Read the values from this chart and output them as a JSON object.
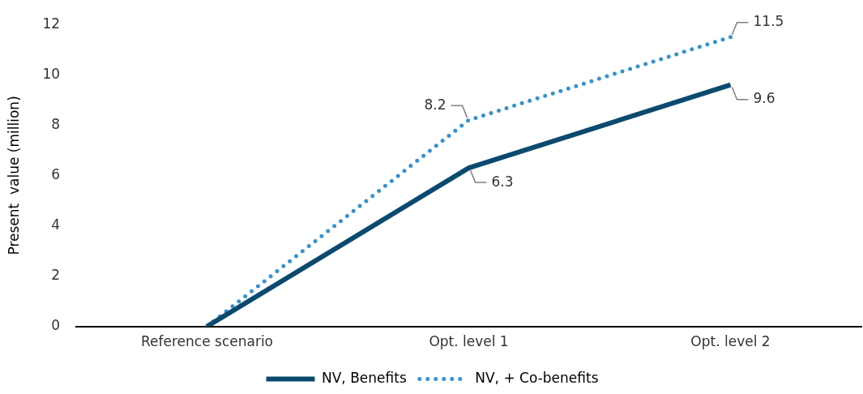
{
  "chart_data": {
    "type": "line",
    "ylabel": "Present  value (million)",
    "categories": [
      "Reference scenario",
      "Opt. level 1",
      "Opt. level 2"
    ],
    "series": [
      {
        "name": "NV, Benefits",
        "color": "#0b4a6f",
        "values": [
          0,
          6.3,
          9.6
        ],
        "value_labels": [
          null,
          "6.3",
          "9.6"
        ],
        "line_style": "solid"
      },
      {
        "name": "NV, + Co-benefits",
        "color": "#3592d0",
        "values": [
          0,
          8.2,
          11.5
        ],
        "value_labels": [
          null,
          "8.2",
          "11.5"
        ],
        "line_style": "dotted"
      }
    ],
    "ylim": [
      0,
      12
    ],
    "yticks": [
      0,
      2,
      4,
      6,
      8,
      10,
      12
    ],
    "grid": false,
    "legend": "bottom",
    "marker": "none"
  }
}
